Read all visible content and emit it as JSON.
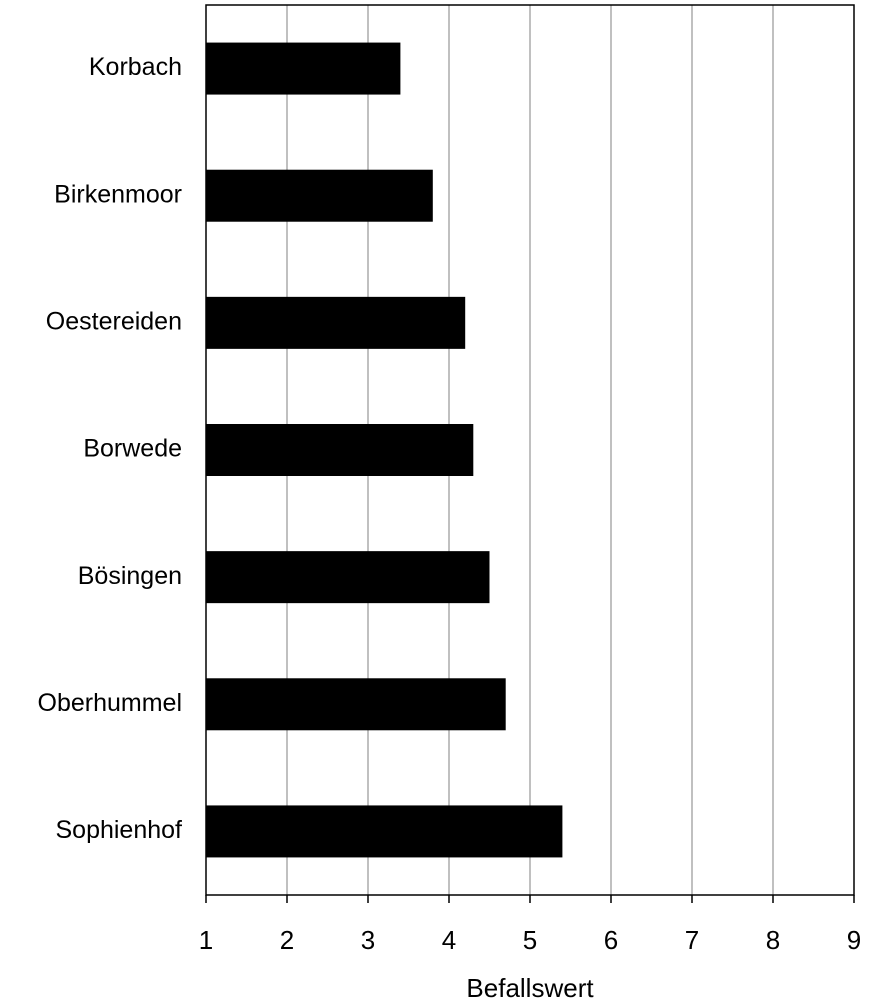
{
  "chart_data": {
    "type": "barh",
    "categories": [
      "Korbach",
      "Birkenmoor",
      "Oestereiden",
      "Borwede",
      "Bösingen",
      "Oberhummel",
      "Sophienhof"
    ],
    "values": [
      3.4,
      3.8,
      4.2,
      4.3,
      4.5,
      4.7,
      5.4
    ],
    "color": "#000000",
    "xlabel": "Befallswert",
    "xlim": [
      1,
      9
    ],
    "xticks": [
      1,
      2,
      3,
      4,
      5,
      6,
      7,
      8,
      9
    ],
    "grid": true
  }
}
